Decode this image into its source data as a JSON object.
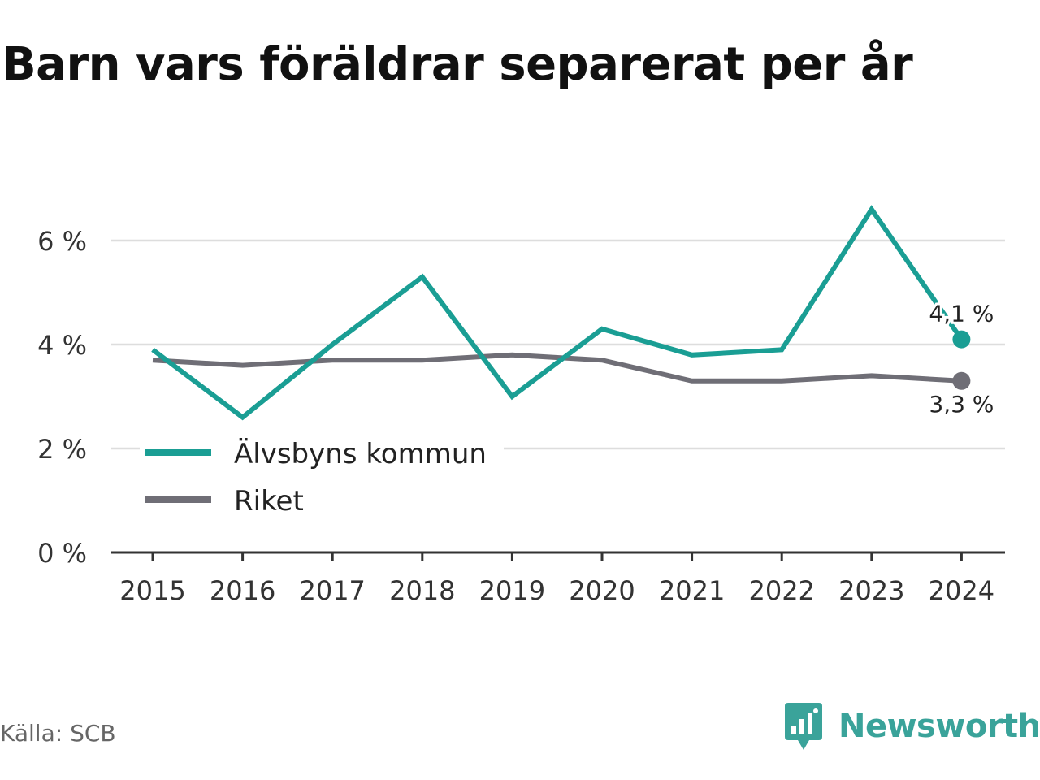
{
  "title": "Barn vars föräldrar separerat per år",
  "source": "Källa: SCB",
  "brand": {
    "name": "Newsworthy",
    "icon": "newsworthy-logo-icon",
    "color": "#3aa39a"
  },
  "chart_data": {
    "type": "line",
    "title": "Barn vars föräldrar separerat per år",
    "xlabel": "",
    "ylabel": "",
    "x": [
      "2015",
      "2016",
      "2017",
      "2018",
      "2019",
      "2020",
      "2021",
      "2022",
      "2023",
      "2024"
    ],
    "ylim": [
      0,
      7
    ],
    "yticks": [
      0,
      2,
      4,
      6
    ],
    "ytick_labels": [
      "0 %",
      "2 %",
      "4 %",
      "6 %"
    ],
    "grid": true,
    "legend": "bottom-left",
    "series": [
      {
        "name": "Älvsbyns kommun",
        "color": "#1a9e94",
        "values": [
          3.9,
          2.6,
          4.0,
          5.3,
          3.0,
          4.3,
          3.8,
          3.9,
          6.6,
          4.1
        ],
        "end_label": "4,1 %"
      },
      {
        "name": "Riket",
        "color": "#6f6e76",
        "values": [
          3.7,
          3.6,
          3.7,
          3.7,
          3.8,
          3.7,
          3.3,
          3.3,
          3.4,
          3.3
        ],
        "end_label": "3,3 %"
      }
    ]
  }
}
